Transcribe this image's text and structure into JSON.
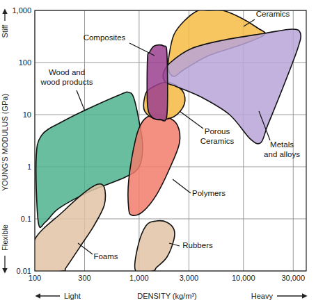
{
  "chart_data": {
    "type": "region",
    "x_label": "DENSITY (kg/m³)",
    "y_label": "YOUNG'S MODULUS (GPa)",
    "annotations": [
      "Stiff",
      "Flexible",
      "Light",
      "Heavy"
    ],
    "log": true,
    "grid": true,
    "xlim": [
      100,
      40000
    ],
    "ylim": [
      0.01,
      1000
    ],
    "xticks": [
      100,
      300,
      {
        "value": 1000,
        "label": "1,000"
      },
      {
        "value": 3000,
        "label": "3,000"
      },
      {
        "value": 10000,
        "label": "10,000"
      },
      {
        "value": 30000,
        "label": "30,000"
      }
    ],
    "yticks": [
      0.01,
      0.1,
      1,
      10,
      100,
      {
        "value": 1000,
        "label": "1,000"
      }
    ],
    "series": [
      {
        "name": "Wood and wood products",
        "color": "#4db38e",
        "x": [
          108,
          103,
          116,
          185,
          341,
          681,
          794,
          885,
          1000,
          1080,
          1000,
          736,
          341,
          171,
          126
        ],
        "values": [
          0.086,
          1.36,
          4.0,
          7.4,
          13.6,
          25,
          26.7,
          21.5,
          7.4,
          2.5,
          1,
          0.63,
          0.34,
          0.16,
          0.086
        ]
      },
      {
        "name": "Foams",
        "color": "#e2c3a4",
        "x": [
          100,
          185,
          293,
          398,
          464,
          464,
          369,
          271,
          200,
          185,
          100
        ],
        "values": [
          0.04,
          0.136,
          0.31,
          0.46,
          0.4,
          0.185,
          0.074,
          0.029,
          0.0117,
          0.01,
          0.01
        ]
      },
      {
        "name": "Rubbers",
        "color": "#e2c3a4",
        "x": [
          926,
          970,
          1166,
          1468,
          1848,
          2154,
          2154,
          1848,
          1468,
          1359
        ],
        "values": [
          0.01,
          0.029,
          0.074,
          0.091,
          0.086,
          0.063,
          0.04,
          0.0185,
          0.0117,
          0.01
        ]
      },
      {
        "name": "Polymers",
        "color": "#f27c6c",
        "x": [
          794,
          794,
          926,
          1080,
          1359,
          1848,
          2326,
          2437,
          1995,
          1468,
          1080,
          858
        ],
        "values": [
          0.158,
          0.54,
          3.4,
          7.4,
          10,
          9.1,
          6.3,
          2.9,
          1,
          0.29,
          0.136,
          0.117
        ]
      },
      {
        "name": "Porous Ceramics",
        "color": "#f5b942",
        "x": [
          1130,
          1259,
          1848,
          2590,
          2712,
          2154,
          1468,
          1130
        ],
        "values": [
          21.5,
          31,
          42,
          29,
          15.8,
          9.1,
          8.1,
          11.7
        ]
      },
      {
        "name": "Ceramics",
        "color": "#f7bc45",
        "x": [
          1935,
          2154,
          2712,
          3687,
          4642,
          6310,
          9261,
          13594,
          15849,
          9261,
          4642,
          2712,
          2154,
          1905
        ],
        "values": [
          136,
          341,
          631,
          1000,
          1000,
          1000,
          736,
          464,
          341,
          215,
          136,
          74,
          54,
          74
        ]
      },
      {
        "name": "Metals and alloys",
        "color": "#b9a5d8",
        "x": [
          1711,
          1995,
          3162,
          6310,
          15849,
          29286,
          35200,
          33113,
          23300,
          17100,
          14678,
          11659,
          7356,
          3981,
          2326,
          1791
        ],
        "values": [
          63,
          100,
          185,
          267,
          363,
          437,
          363,
          185,
          29,
          6.3,
          2.9,
          3.4,
          10,
          21.5,
          34,
          42
        ]
      },
      {
        "name": "Composites",
        "color": "#9b3f90",
        "x": [
          1259,
          1402,
          1711,
          1848,
          1848,
          1585,
          1318,
          1202,
          1202
        ],
        "values": [
          158,
          209,
          209,
          145,
          10,
          8.1,
          9.1,
          15.8,
          117
        ]
      }
    ]
  }
}
